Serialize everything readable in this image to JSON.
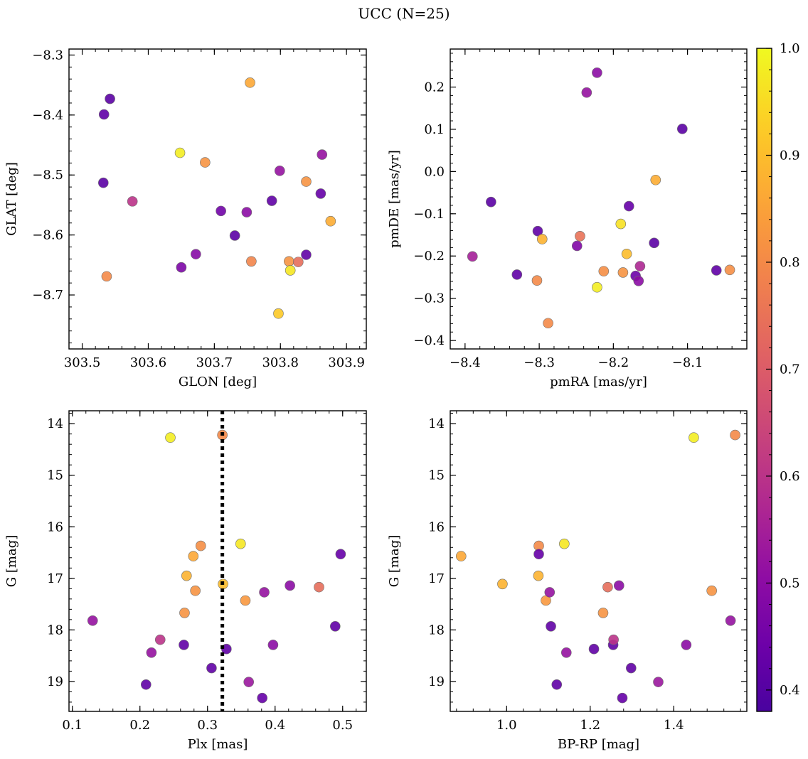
{
  "figure": {
    "title": "UCC (N=25)"
  },
  "colorbar": {
    "range": [
      0.38,
      1.0
    ],
    "ticks": [
      0.4,
      0.5,
      0.6,
      0.7,
      0.8,
      0.9,
      1.0
    ],
    "tick_labels": [
      "0.4",
      "0.5",
      "0.6",
      "0.7",
      "0.8",
      "0.9",
      "1.0"
    ],
    "colormap": "plasma"
  },
  "chart_data": [
    {
      "type": "scatter",
      "title": "",
      "xlabel": "GLON [deg]",
      "ylabel": "GLAT [deg]",
      "xlim": [
        303.48,
        303.93
      ],
      "ylim": [
        -8.79,
        -8.29
      ],
      "xticks": [
        303.5,
        303.6,
        303.7,
        303.8,
        303.9
      ],
      "xtick_labels": [
        "303.5",
        "303.6",
        "303.7",
        "303.8",
        "303.9"
      ],
      "yticks": [
        -8.3,
        -8.4,
        -8.5,
        -8.6,
        -8.7
      ],
      "ytick_labels": [
        "−8.3",
        "−8.4",
        "−8.5",
        "−8.6",
        "−8.7"
      ],
      "y_inverted": false,
      "points": [
        {
          "x": 303.542,
          "y": -8.373,
          "c": 0.41
        },
        {
          "x": 303.533,
          "y": -8.399,
          "c": 0.42
        },
        {
          "x": 303.532,
          "y": -8.513,
          "c": 0.41
        },
        {
          "x": 303.537,
          "y": -8.669,
          "c": 0.8
        },
        {
          "x": 303.576,
          "y": -8.544,
          "c": 0.6
        },
        {
          "x": 303.648,
          "y": -8.463,
          "c": 0.98
        },
        {
          "x": 303.65,
          "y": -8.654,
          "c": 0.47
        },
        {
          "x": 303.672,
          "y": -8.632,
          "c": 0.49
        },
        {
          "x": 303.686,
          "y": -8.479,
          "c": 0.82
        },
        {
          "x": 303.71,
          "y": -8.56,
          "c": 0.45
        },
        {
          "x": 303.731,
          "y": -8.601,
          "c": 0.41
        },
        {
          "x": 303.749,
          "y": -8.562,
          "c": 0.5
        },
        {
          "x": 303.754,
          "y": -8.346,
          "c": 0.86
        },
        {
          "x": 303.756,
          "y": -8.644,
          "c": 0.79
        },
        {
          "x": 303.787,
          "y": -8.543,
          "c": 0.42
        },
        {
          "x": 303.799,
          "y": -8.493,
          "c": 0.52
        },
        {
          "x": 303.797,
          "y": -8.731,
          "c": 0.92
        },
        {
          "x": 303.813,
          "y": -8.644,
          "c": 0.82
        },
        {
          "x": 303.815,
          "y": -8.659,
          "c": 0.97
        },
        {
          "x": 303.827,
          "y": -8.645,
          "c": 0.74
        },
        {
          "x": 303.839,
          "y": -8.511,
          "c": 0.82
        },
        {
          "x": 303.839,
          "y": -8.633,
          "c": 0.42
        },
        {
          "x": 303.861,
          "y": -8.531,
          "c": 0.43
        },
        {
          "x": 303.863,
          "y": -8.466,
          "c": 0.52
        },
        {
          "x": 303.876,
          "y": -8.577,
          "c": 0.87
        }
      ]
    },
    {
      "type": "scatter",
      "title": "",
      "xlabel": "pmRA [mas/yr]",
      "ylabel": "pmDE [mas/yr]",
      "xlim": [
        -8.42,
        -8.02
      ],
      "ylim": [
        -0.42,
        0.29
      ],
      "xticks": [
        -8.4,
        -8.3,
        -8.2,
        -8.1
      ],
      "xtick_labels": [
        "−8.4",
        "−8.3",
        "−8.2",
        "−8.1"
      ],
      "yticks": [
        0.2,
        0.1,
        0.0,
        -0.1,
        -0.2,
        -0.3,
        -0.4
      ],
      "ytick_labels": [
        "0.2",
        "0.1",
        "0.0",
        "−0.1",
        "−0.2",
        "−0.3",
        "−0.4"
      ],
      "y_inverted": false,
      "points": [
        {
          "x": -8.39,
          "y": -0.201,
          "c": 0.55
        },
        {
          "x": -8.365,
          "y": -0.072,
          "c": 0.41
        },
        {
          "x": -8.33,
          "y": -0.244,
          "c": 0.42
        },
        {
          "x": -8.302,
          "y": -0.141,
          "c": 0.42
        },
        {
          "x": -8.303,
          "y": -0.258,
          "c": 0.8
        },
        {
          "x": -8.296,
          "y": -0.16,
          "c": 0.88
        },
        {
          "x": -8.288,
          "y": -0.359,
          "c": 0.8
        },
        {
          "x": -8.249,
          "y": -0.176,
          "c": 0.48
        },
        {
          "x": -8.245,
          "y": -0.153,
          "c": 0.75
        },
        {
          "x": -8.236,
          "y": 0.187,
          "c": 0.52
        },
        {
          "x": -8.222,
          "y": 0.234,
          "c": 0.5
        },
        {
          "x": -8.222,
          "y": -0.274,
          "c": 0.98
        },
        {
          "x": -8.213,
          "y": -0.236,
          "c": 0.81
        },
        {
          "x": -8.19,
          "y": -0.124,
          "c": 0.96
        },
        {
          "x": -8.187,
          "y": -0.239,
          "c": 0.82
        },
        {
          "x": -8.182,
          "y": -0.195,
          "c": 0.9
        },
        {
          "x": -8.179,
          "y": -0.082,
          "c": 0.43
        },
        {
          "x": -8.17,
          "y": -0.247,
          "c": 0.44
        },
        {
          "x": -8.166,
          "y": -0.259,
          "c": 0.5
        },
        {
          "x": -8.164,
          "y": -0.224,
          "c": 0.57
        },
        {
          "x": -8.145,
          "y": -0.169,
          "c": 0.41
        },
        {
          "x": -8.143,
          "y": -0.02,
          "c": 0.87
        },
        {
          "x": -8.107,
          "y": 0.101,
          "c": 0.41
        },
        {
          "x": -8.061,
          "y": -0.234,
          "c": 0.42
        },
        {
          "x": -8.043,
          "y": -0.233,
          "c": 0.81
        }
      ]
    },
    {
      "type": "scatter",
      "title": "",
      "xlabel": "Plx [mas]",
      "ylabel": "G [mag]",
      "xlim": [
        0.095,
        0.535
      ],
      "ylim": [
        13.75,
        19.58
      ],
      "xticks": [
        0.1,
        0.2,
        0.3,
        0.4,
        0.5
      ],
      "xtick_labels": [
        "0.1",
        "0.2",
        "0.3",
        "0.4",
        "0.5"
      ],
      "yticks": [
        14,
        15,
        16,
        17,
        18,
        19
      ],
      "ytick_labels": [
        "14",
        "15",
        "16",
        "17",
        "18",
        "19"
      ],
      "y_inverted": true,
      "vline": {
        "x": 0.322,
        "style": "dotted",
        "color": "#000000"
      },
      "points": [
        {
          "x": 0.13,
          "y": 17.82,
          "c": 0.52
        },
        {
          "x": 0.209,
          "y": 19.06,
          "c": 0.42
        },
        {
          "x": 0.217,
          "y": 18.44,
          "c": 0.52
        },
        {
          "x": 0.23,
          "y": 18.19,
          "c": 0.6
        },
        {
          "x": 0.245,
          "y": 14.27,
          "c": 0.98
        },
        {
          "x": 0.265,
          "y": 18.29,
          "c": 0.42
        },
        {
          "x": 0.266,
          "y": 17.67,
          "c": 0.82
        },
        {
          "x": 0.269,
          "y": 16.95,
          "c": 0.88
        },
        {
          "x": 0.279,
          "y": 16.57,
          "c": 0.86
        },
        {
          "x": 0.282,
          "y": 17.24,
          "c": 0.82
        },
        {
          "x": 0.29,
          "y": 16.37,
          "c": 0.81
        },
        {
          "x": 0.306,
          "y": 18.74,
          "c": 0.42
        },
        {
          "x": 0.322,
          "y": 14.22,
          "c": 0.8
        },
        {
          "x": 0.323,
          "y": 17.11,
          "c": 0.9
        },
        {
          "x": 0.328,
          "y": 18.37,
          "c": 0.42
        },
        {
          "x": 0.349,
          "y": 16.33,
          "c": 0.97
        },
        {
          "x": 0.356,
          "y": 17.43,
          "c": 0.83
        },
        {
          "x": 0.361,
          "y": 19.01,
          "c": 0.53
        },
        {
          "x": 0.381,
          "y": 19.32,
          "c": 0.43
        },
        {
          "x": 0.384,
          "y": 17.27,
          "c": 0.52
        },
        {
          "x": 0.397,
          "y": 18.29,
          "c": 0.5
        },
        {
          "x": 0.422,
          "y": 17.14,
          "c": 0.5
        },
        {
          "x": 0.465,
          "y": 17.17,
          "c": 0.74
        },
        {
          "x": 0.489,
          "y": 17.93,
          "c": 0.42
        },
        {
          "x": 0.497,
          "y": 16.53,
          "c": 0.43
        }
      ]
    },
    {
      "type": "scatter",
      "title": "",
      "xlabel": "BP-RP [mag]",
      "ylabel": "G [mag]",
      "xlim": [
        0.865,
        1.575
      ],
      "ylim": [
        13.75,
        19.58
      ],
      "xticks": [
        1.0,
        1.2,
        1.4
      ],
      "xtick_labels": [
        "1.0",
        "1.2",
        "1.4"
      ],
      "yticks": [
        14,
        15,
        16,
        17,
        18,
        19
      ],
      "ytick_labels": [
        "14",
        "15",
        "16",
        "17",
        "18",
        "19"
      ],
      "y_inverted": true,
      "points": [
        {
          "x": 0.891,
          "y": 16.57,
          "c": 0.86
        },
        {
          "x": 0.99,
          "y": 17.11,
          "c": 0.88
        },
        {
          "x": 1.076,
          "y": 16.95,
          "c": 0.88
        },
        {
          "x": 1.077,
          "y": 16.37,
          "c": 0.8
        },
        {
          "x": 1.077,
          "y": 16.53,
          "c": 0.43
        },
        {
          "x": 1.094,
          "y": 17.43,
          "c": 0.83
        },
        {
          "x": 1.103,
          "y": 17.27,
          "c": 0.52
        },
        {
          "x": 1.106,
          "y": 17.93,
          "c": 0.42
        },
        {
          "x": 1.12,
          "y": 19.06,
          "c": 0.42
        },
        {
          "x": 1.138,
          "y": 16.33,
          "c": 0.97
        },
        {
          "x": 1.143,
          "y": 18.44,
          "c": 0.52
        },
        {
          "x": 1.209,
          "y": 18.37,
          "c": 0.42
        },
        {
          "x": 1.231,
          "y": 17.67,
          "c": 0.82
        },
        {
          "x": 1.242,
          "y": 17.17,
          "c": 0.74
        },
        {
          "x": 1.255,
          "y": 18.29,
          "c": 0.42
        },
        {
          "x": 1.256,
          "y": 18.19,
          "c": 0.6
        },
        {
          "x": 1.269,
          "y": 17.14,
          "c": 0.5
        },
        {
          "x": 1.277,
          "y": 19.32,
          "c": 0.43
        },
        {
          "x": 1.298,
          "y": 18.74,
          "c": 0.42
        },
        {
          "x": 1.363,
          "y": 19.01,
          "c": 0.53
        },
        {
          "x": 1.43,
          "y": 18.29,
          "c": 0.5
        },
        {
          "x": 1.448,
          "y": 14.27,
          "c": 0.98
        },
        {
          "x": 1.491,
          "y": 17.24,
          "c": 0.82
        },
        {
          "x": 1.536,
          "y": 17.82,
          "c": 0.52
        },
        {
          "x": 1.547,
          "y": 14.22,
          "c": 0.8
        }
      ]
    }
  ]
}
